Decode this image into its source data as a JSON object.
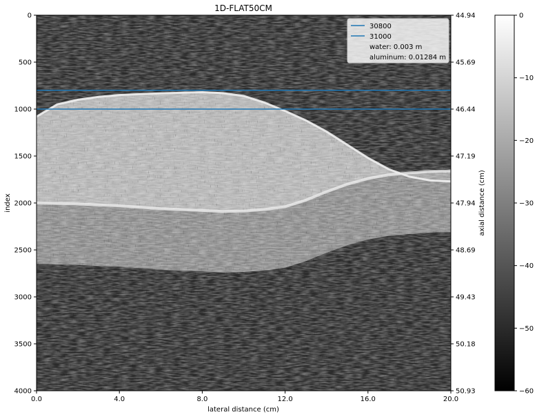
{
  "chart_data": {
    "type": "heatmap",
    "title": "1D-FLAT50CM",
    "xlabel": "lateral distance (cm)",
    "ylabel": "index",
    "y2label": "axial distance (cm)",
    "xlim": [
      0.0,
      20.0
    ],
    "ylim": [
      4000,
      0
    ],
    "x_ticks": [
      "0.0",
      "4.0",
      "8.0",
      "12.0",
      "16.0",
      "20.0"
    ],
    "x_tick_values": [
      0,
      4,
      8,
      12,
      16,
      20
    ],
    "y_ticks": [
      "0",
      "500",
      "1000",
      "1500",
      "2000",
      "2500",
      "3000",
      "3500",
      "4000"
    ],
    "y_tick_values": [
      0,
      500,
      1000,
      1500,
      2000,
      2500,
      3000,
      3500,
      4000
    ],
    "y2_ticks": [
      "44.94",
      "45.69",
      "46.44",
      "47.19",
      "47.94",
      "48.69",
      "49.43",
      "50.18",
      "50.93"
    ],
    "colorbar": {
      "range": [
        -60,
        0
      ],
      "ticks": [
        "0",
        "−10",
        "−20",
        "−30",
        "−40",
        "−50",
        "−60"
      ],
      "tick_values": [
        0,
        -10,
        -20,
        -30,
        -40,
        -50,
        -60
      ],
      "colormap": "gray"
    },
    "hlines": [
      {
        "name": "30800",
        "y": 800,
        "color": "#1f77b4"
      },
      {
        "name": "31000",
        "y": 1000,
        "color": "#1f77b4"
      }
    ],
    "legend": {
      "placement": "upper-right",
      "entries": [
        "30800",
        "31000",
        "water: 0.003 m",
        "aluminum: 0.01284 m"
      ]
    },
    "surfaces": {
      "interface_top": {
        "x": [
          0,
          1,
          2,
          3,
          4,
          5,
          6,
          7,
          8,
          9,
          10,
          11,
          12,
          13,
          14,
          15,
          16,
          17,
          18,
          19,
          20
        ],
        "y": [
          1080,
          950,
          900,
          870,
          850,
          840,
          832,
          826,
          820,
          830,
          860,
          930,
          1020,
          1120,
          1240,
          1380,
          1520,
          1640,
          1720,
          1760,
          1770
        ]
      },
      "back_wall": {
        "x": [
          0,
          2,
          4,
          6,
          8,
          9,
          10,
          11,
          12,
          13,
          14,
          15,
          16,
          17,
          18,
          19,
          20
        ],
        "y": [
          2000,
          2010,
          2030,
          2060,
          2080,
          2090,
          2085,
          2070,
          2040,
          1970,
          1880,
          1800,
          1740,
          1700,
          1680,
          1665,
          1660
        ]
      }
    }
  }
}
